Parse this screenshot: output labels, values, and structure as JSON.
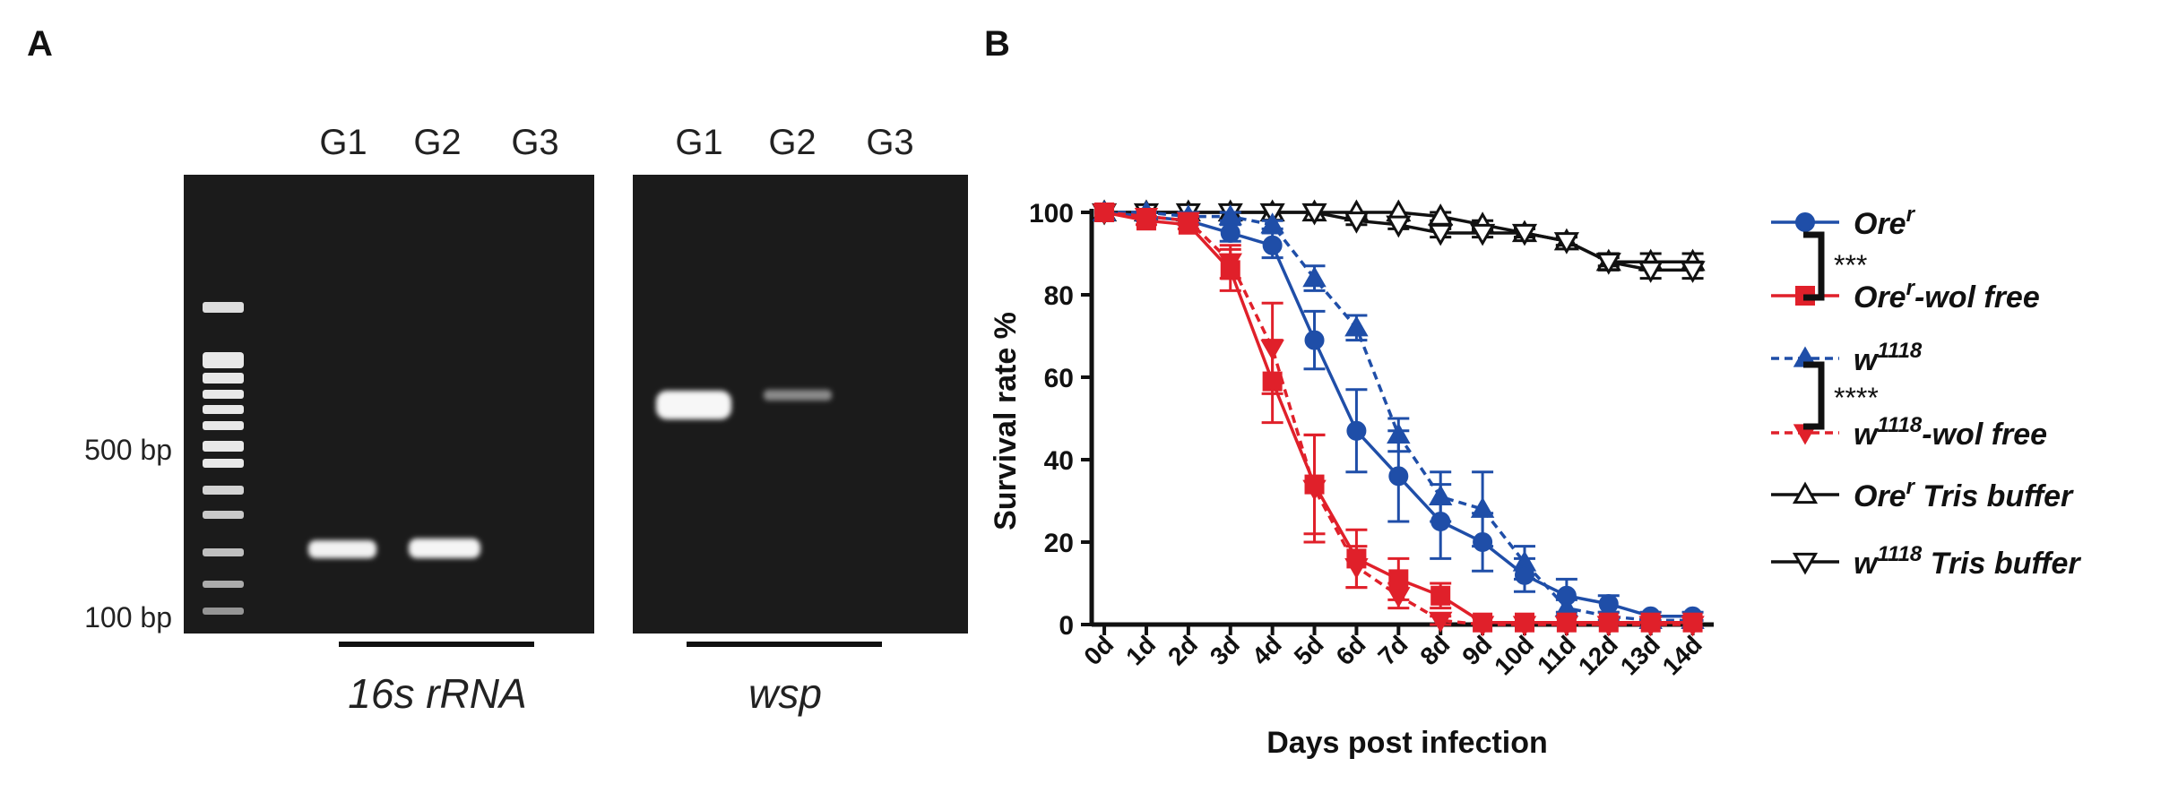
{
  "panel_labels": {
    "a": "A",
    "b": "B"
  },
  "gel": {
    "lane_labels_left": [
      "G1",
      "G2",
      "G3"
    ],
    "lane_labels_right": [
      "G1",
      "G2",
      "G3"
    ],
    "marker_labels": [
      "500 bp",
      "100 bp"
    ],
    "gene_left": "16s rRNA",
    "gene_right": "wsp"
  },
  "significance": {
    "pair1": "***",
    "pair2": "****"
  },
  "colors": {
    "blue": "#1f4ea8",
    "red": "#e0202a",
    "black": "#111111"
  },
  "chart_data": {
    "type": "line",
    "xlabel": "Days post infection",
    "ylabel": "Survival rate %",
    "ylim": [
      0,
      100
    ],
    "yticks": [
      0,
      20,
      40,
      60,
      80,
      100
    ],
    "x": [
      0,
      1,
      2,
      3,
      4,
      5,
      6,
      7,
      8,
      9,
      10,
      11,
      12,
      13,
      14
    ],
    "xtick_labels": [
      "0d",
      "1d",
      "2d",
      "3d",
      "4d",
      "5d",
      "6d",
      "7d",
      "8d",
      "9d",
      "10d",
      "11d",
      "12d",
      "13d",
      "14d"
    ],
    "series": [
      {
        "name": "Ore",
        "sup": "r",
        "suffix": "",
        "color": "#1f4ea8",
        "marker": "circle",
        "dash": false,
        "values": [
          100,
          99,
          98,
          95,
          92,
          69,
          47,
          36,
          25,
          20,
          12,
          7,
          5,
          2,
          2
        ],
        "errors": [
          0,
          1,
          1,
          2,
          3,
          7,
          10,
          11,
          9,
          7,
          4,
          4,
          2,
          1,
          1
        ]
      },
      {
        "name": "Ore",
        "sup": "r",
        "suffix": "-wol free",
        "color": "#e0202a",
        "marker": "square",
        "dash": false,
        "values": [
          100,
          98,
          97,
          86,
          59,
          34,
          16,
          11,
          7,
          0.5,
          0.5,
          0.5,
          0.5,
          0.5,
          0.5
        ],
        "errors": [
          0,
          1,
          1,
          5,
          10,
          12,
          7,
          5,
          3,
          0.5,
          0,
          0,
          0,
          0,
          0
        ]
      },
      {
        "name": "w",
        "sup": "1118",
        "suffix": "",
        "color": "#1f4ea8",
        "marker": "triangle-up",
        "dash": true,
        "values": [
          100,
          100,
          99,
          99,
          97,
          84,
          72,
          46,
          31,
          28,
          15,
          4,
          2,
          1,
          1
        ],
        "errors": [
          0,
          0,
          1,
          1,
          1,
          3,
          3,
          4,
          6,
          9,
          4,
          2,
          1,
          0,
          0
        ]
      },
      {
        "name": "w",
        "sup": "1118",
        "suffix": "-wol free",
        "color": "#e0202a",
        "marker": "triangle-down",
        "dash": true,
        "values": [
          100,
          99,
          98,
          88,
          67,
          33,
          14,
          7,
          1,
          0,
          0,
          0,
          0,
          0,
          0
        ],
        "errors": [
          0,
          0,
          1,
          4,
          11,
          13,
          5,
          3,
          1,
          0,
          0,
          0,
          0,
          0,
          0
        ]
      },
      {
        "name": "Ore",
        "sup": "r",
        "suffix": " Tris buffer",
        "color": "#111111",
        "marker": "triangle-up-open",
        "dash": false,
        "values": [
          100,
          100,
          100,
          100,
          100,
          100,
          100,
          100,
          99,
          97,
          95,
          93,
          88,
          88,
          88
        ],
        "errors": [
          0,
          0,
          0,
          0,
          0,
          0,
          0,
          0,
          1,
          1,
          1,
          1,
          2,
          2,
          2
        ]
      },
      {
        "name": "w",
        "sup": "1118",
        "suffix": " Tris buffer",
        "color": "#111111",
        "marker": "triangle-down-open",
        "dash": false,
        "values": [
          100,
          100,
          100,
          100,
          100,
          100,
          98,
          97,
          95,
          95,
          95,
          93,
          88,
          86,
          86
        ],
        "errors": [
          0,
          0,
          0,
          0,
          0,
          0,
          1,
          1,
          1,
          1,
          1,
          1,
          1,
          2,
          2
        ]
      }
    ]
  }
}
